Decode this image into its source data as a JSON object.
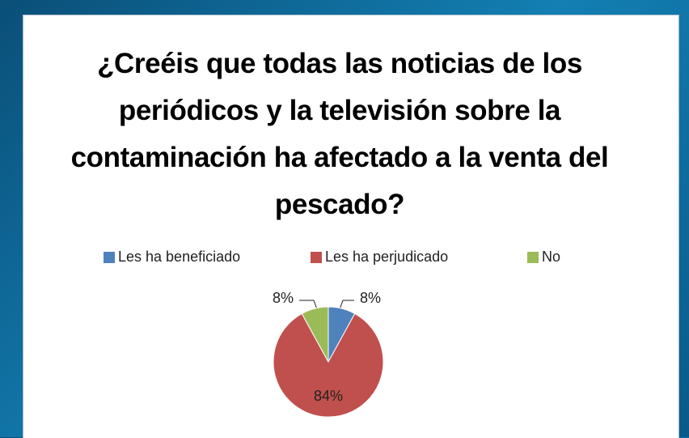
{
  "chart_data": {
    "type": "pie",
    "title": "¿Creéis que todas las noticias de los periódicos y la televisión sobre la contaminación ha afectado a la venta del pescado?",
    "categories": [
      "Les ha beneficiado",
      "Les ha perjudicado",
      "No"
    ],
    "values": [
      8,
      84,
      8
    ],
    "value_labels": [
      "8%",
      "84%",
      "8%"
    ],
    "colors": [
      "#4f81bd",
      "#c0504d",
      "#9bbb59"
    ],
    "legend": "top"
  }
}
